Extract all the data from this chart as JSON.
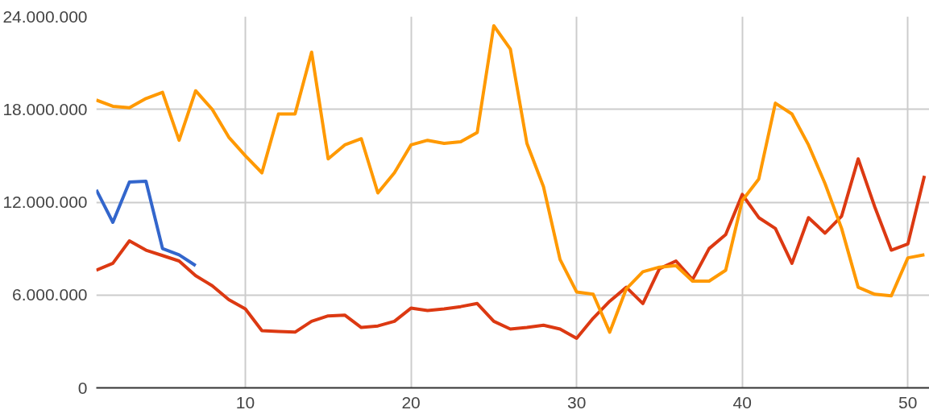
{
  "chart_data": {
    "type": "line",
    "x": [
      1,
      2,
      3,
      4,
      5,
      6,
      7,
      8,
      9,
      10,
      11,
      12,
      13,
      14,
      15,
      16,
      17,
      18,
      19,
      20,
      21,
      22,
      23,
      24,
      25,
      26,
      27,
      28,
      29,
      30,
      31,
      32,
      33,
      34,
      35,
      36,
      37,
      38,
      39,
      40,
      41,
      42,
      43,
      44,
      45,
      46,
      47,
      48,
      49,
      50,
      51
    ],
    "series": [
      {
        "color": "#3366cc",
        "values": [
          12800000,
          10700000,
          13300000,
          13350000,
          9000000,
          8600000,
          7900000,
          null,
          null,
          null,
          null,
          null,
          null,
          null,
          null,
          null,
          null,
          null,
          null,
          null,
          null,
          null,
          null,
          null,
          null,
          null,
          null,
          null,
          null,
          null,
          null,
          null,
          null,
          null,
          null,
          null,
          null,
          null,
          null,
          null,
          null,
          null,
          null,
          null,
          null,
          null,
          null,
          null,
          null,
          null,
          null
        ]
      },
      {
        "color": "#dc3912",
        "values": [
          7600000,
          8050000,
          9500000,
          8900000,
          8550000,
          8200000,
          7250000,
          6600000,
          5700000,
          5100000,
          3700000,
          3650000,
          3600000,
          4300000,
          4650000,
          4700000,
          3900000,
          4000000,
          4300000,
          5150000,
          5000000,
          5100000,
          5250000,
          5450000,
          4300000,
          3800000,
          3900000,
          4050000,
          3800000,
          3200000,
          4500000,
          5600000,
          6500000,
          5450000,
          7700000,
          8200000,
          7000000,
          9000000,
          9900000,
          12500000,
          11000000,
          10300000,
          8050000,
          11000000,
          10000000,
          11100000,
          14800000,
          11700000,
          8900000,
          9300000,
          13700000
        ]
      },
      {
        "color": "#ff9900",
        "values": [
          18600000,
          18200000,
          18100000,
          18700000,
          19100000,
          16000000,
          19200000,
          18000000,
          16200000,
          15000000,
          13900000,
          17700000,
          17700000,
          21700000,
          14800000,
          15700000,
          16100000,
          12600000,
          13900000,
          15700000,
          16000000,
          15800000,
          15900000,
          16500000,
          23400000,
          21900000,
          15800000,
          13000000,
          8300000,
          6200000,
          6050000,
          3600000,
          6400000,
          7500000,
          7800000,
          7900000,
          6900000,
          6900000,
          7600000,
          12100000,
          13500000,
          18400000,
          17700000,
          15700000,
          13200000,
          10300000,
          6500000,
          6050000,
          5950000,
          8400000,
          8600000
        ]
      }
    ],
    "xlim": [
      1,
      51.3
    ],
    "ylim": [
      0,
      24000000
    ],
    "xticks": [
      10,
      20,
      30,
      40,
      50
    ],
    "yticks": [
      {
        "value": 0,
        "label": "0"
      },
      {
        "value": 6000000,
        "label": "6.000.000"
      },
      {
        "value": 12000000,
        "label": "12.000.000"
      },
      {
        "value": 18000000,
        "label": "18.000.000"
      },
      {
        "value": 24000000,
        "label": "24.000.000"
      }
    ],
    "grid": true
  }
}
